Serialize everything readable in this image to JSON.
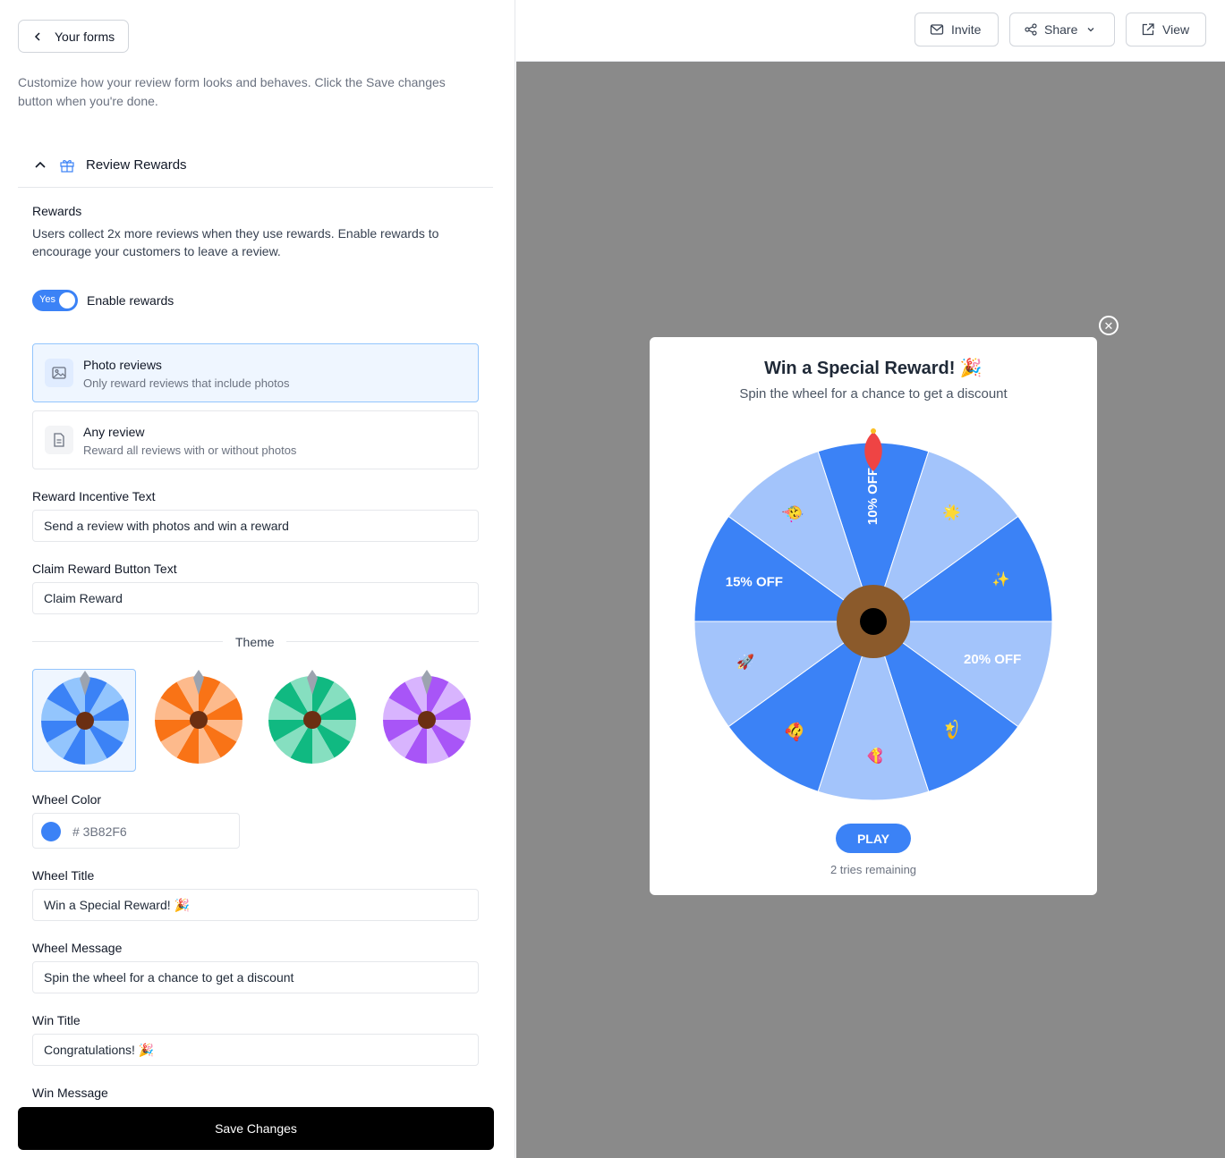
{
  "nav": {
    "back_label": "Your forms"
  },
  "intro_text": "Customize how your review form looks and behaves. Click the Save changes button when you're done.",
  "section": {
    "title": "Review Rewards"
  },
  "rewards": {
    "label": "Rewards",
    "description": "Users collect 2x more reviews when they use rewards. Enable rewards to encourage your customers to leave a review.",
    "toggle_state": "Yes",
    "toggle_label": "Enable rewards"
  },
  "options": [
    {
      "title": "Photo reviews",
      "subtitle": "Only reward reviews that include photos",
      "icon": "image-icon",
      "selected": true
    },
    {
      "title": "Any review",
      "subtitle": "Reward all reviews with or without photos",
      "icon": "document-icon",
      "selected": false
    }
  ],
  "fields": {
    "incentive_label": "Reward Incentive Text",
    "incentive_value": "Send a review with photos and win a reward",
    "claim_label": "Claim Reward Button Text",
    "claim_value": "Claim Reward",
    "theme_label": "Theme",
    "wheel_color_label": "Wheel Color",
    "wheel_color_hex": "# 3B82F6",
    "wheel_title_label": "Wheel Title",
    "wheel_title_value": "Win a Special Reward! 🎉",
    "wheel_message_label": "Wheel Message",
    "wheel_message_value": "Spin the wheel for a chance to get a discount",
    "win_title_label": "Win Title",
    "win_title_value": "Congratulations! 🎉",
    "win_message_label": "Win Message"
  },
  "themes": [
    {
      "name": "blue",
      "dark": "#3b82f6",
      "light": "#93c5fd",
      "selected": true
    },
    {
      "name": "orange",
      "dark": "#f97316",
      "light": "#fdba8c",
      "selected": false
    },
    {
      "name": "green",
      "dark": "#10b981",
      "light": "#86dfc0",
      "selected": false
    },
    {
      "name": "purple",
      "dark": "#a855f7",
      "light": "#d8b4fe",
      "selected": false
    }
  ],
  "save_label": "Save Changes",
  "topbar": {
    "invite": "Invite",
    "share": "Share",
    "view": "View"
  },
  "modal": {
    "title": "Win a Special Reward! 🎉",
    "message": "Spin the wheel for a chance to get a discount",
    "play": "PLAY",
    "tries": "2 tries remaining",
    "close_glyph": "✕"
  },
  "wheel": {
    "colors": {
      "dark": "#3b82f6",
      "light": "#a3c4fb",
      "hub": "#8b5a2b",
      "pointer": "#ef4444"
    },
    "segments": [
      "10% OFF",
      "🌟",
      "✨",
      "20% OFF",
      "💫",
      "💝",
      "🥰",
      "🚀",
      "15% OFF",
      "🥳"
    ]
  }
}
